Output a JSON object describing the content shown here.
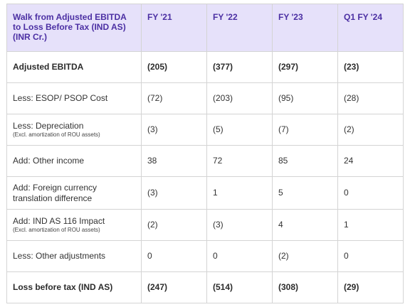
{
  "table": {
    "header": {
      "label": "Walk from Adjusted EBITDA to Loss Before Tax (IND AS) (INR Cr.)",
      "columns": [
        "FY '21",
        "FY '22",
        "FY '23",
        "Q1 FY '24"
      ]
    },
    "rows": [
      {
        "label": "Adjusted EBITDA",
        "sub": "",
        "values": [
          "(205)",
          "(377)",
          "(297)",
          "(23)"
        ],
        "bold": true
      },
      {
        "label": "Less: ESOP/ PSOP Cost",
        "sub": "",
        "values": [
          "(72)",
          "(203)",
          "(95)",
          "(28)"
        ],
        "bold": false
      },
      {
        "label": "Less: Depreciation",
        "sub": "(Excl. amortization of ROU assets)",
        "values": [
          "(3)",
          "(5)",
          "(7)",
          "(2)"
        ],
        "bold": false
      },
      {
        "label": "Add: Other income",
        "sub": "",
        "values": [
          "38",
          "72",
          "85",
          "24"
        ],
        "bold": false
      },
      {
        "label": "Add: Foreign currency translation difference",
        "sub": "",
        "values": [
          "(3)",
          "1",
          "5",
          "0"
        ],
        "bold": false
      },
      {
        "label": "Add: IND AS 116 Impact",
        "sub": "(Excl. amortization of ROU assets)",
        "values": [
          "(2)",
          "(3)",
          "4",
          "1"
        ],
        "bold": false
      },
      {
        "label": "Less: Other adjustments",
        "sub": "",
        "values": [
          "0",
          "0",
          "(2)",
          "0"
        ],
        "bold": false
      },
      {
        "label": "Loss before tax (IND AS)",
        "sub": "",
        "values": [
          "(247)",
          "(514)",
          "(308)",
          "(29)"
        ],
        "bold": true
      }
    ]
  },
  "colors": {
    "header_bg": "#e6e1fa",
    "header_text": "#4b2fa3",
    "border": "#d4d4d4"
  }
}
